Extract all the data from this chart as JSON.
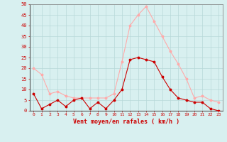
{
  "hours": [
    0,
    1,
    2,
    3,
    4,
    5,
    6,
    7,
    8,
    9,
    10,
    11,
    12,
    13,
    14,
    15,
    16,
    17,
    18,
    19,
    20,
    21,
    22,
    23
  ],
  "wind_avg": [
    8,
    1,
    3,
    5,
    2,
    5,
    6,
    1,
    4,
    1,
    5,
    10,
    24,
    25,
    24,
    23,
    16,
    10,
    6,
    5,
    4,
    4,
    1,
    0
  ],
  "wind_gust": [
    20,
    17,
    8,
    9,
    7,
    6,
    6,
    6,
    6,
    6,
    8,
    23,
    40,
    45,
    49,
    42,
    35,
    28,
    22,
    15,
    6,
    7,
    5,
    4
  ],
  "color_avg": "#cc0000",
  "color_gust": "#ffaaaa",
  "bg_color": "#d8f0f0",
  "grid_color": "#b8d8d8",
  "xlabel": "Vent moyen/en rafales ( km/h )",
  "ylim": [
    0,
    50
  ],
  "yticks": [
    0,
    5,
    10,
    15,
    20,
    25,
    30,
    35,
    40,
    45,
    50
  ],
  "ytick_labels": [
    "0",
    "5",
    "10",
    "15",
    "20",
    "25",
    "30",
    "35",
    "40",
    "45",
    "50"
  ]
}
